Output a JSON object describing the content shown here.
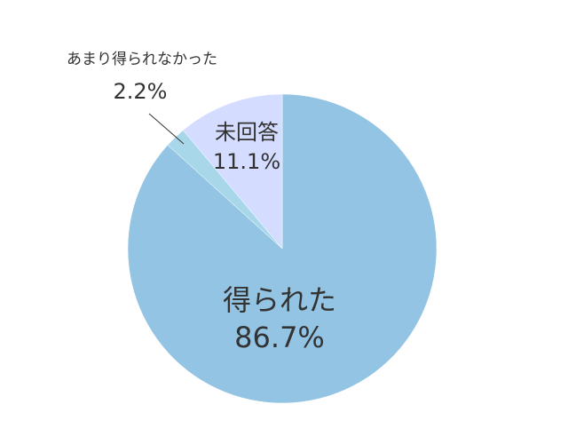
{
  "chart_data": {
    "type": "pie",
    "categories": [
      "得られた",
      "あまり得られなかった",
      "未回答"
    ],
    "values": [
      86.7,
      2.2,
      11.1
    ],
    "value_labels": [
      "86.7%",
      "2.2%",
      "11.1%"
    ],
    "colors": [
      "#93c4e3",
      "#a9d7ea",
      "#d4dcff"
    ]
  }
}
